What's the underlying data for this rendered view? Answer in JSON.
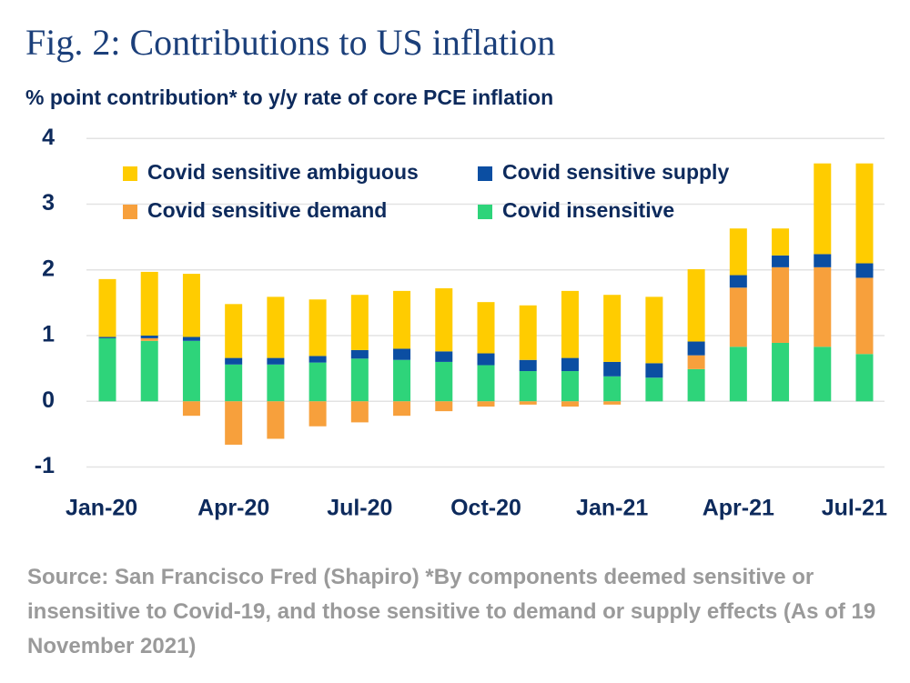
{
  "chart_data": {
    "type": "bar",
    "title": "Fig. 2: Contributions to US inflation",
    "subtitle": "% point contribution* to y/y rate of core PCE inflation",
    "note": "Source: San Francisco Fred (Shapiro) *By components deemed sensitive or insensitive to Covid-19, and those sensitive to demand or supply effects (As of 19 November 2021)",
    "stacked": true,
    "categories": [
      "Jan-20",
      null,
      null,
      "Apr-20",
      null,
      null,
      "Jul-20",
      null,
      null,
      "Oct-20",
      null,
      null,
      "Jan-21",
      null,
      null,
      "Apr-21",
      null,
      null,
      "Jul-21"
    ],
    "series": [
      {
        "name": "Covid sensitive ambiguous",
        "color": "#ffcc00",
        "values": [
          0.88,
          0.97,
          0.96,
          0.82,
          0.93,
          0.86,
          0.84,
          0.88,
          0.96,
          0.78,
          0.83,
          1.02,
          1.02,
          1.01,
          1.1,
          0.71,
          0.41,
          1.38,
          1.52
        ]
      },
      {
        "name": "Covid sensitive supply",
        "color": "#0b4ea2",
        "values": [
          0.02,
          0.04,
          0.06,
          0.1,
          0.1,
          0.1,
          0.13,
          0.17,
          0.16,
          0.18,
          0.17,
          0.2,
          0.22,
          0.22,
          0.21,
          0.19,
          0.18,
          0.2,
          0.22
        ]
      },
      {
        "name": "Covid sensitive demand",
        "color": "#f7a03c",
        "values": [
          0,
          0.04,
          -0.22,
          -0.66,
          -0.57,
          -0.38,
          -0.32,
          -0.22,
          -0.15,
          -0.08,
          -0.05,
          -0.08,
          -0.05,
          0,
          0.21,
          0.9,
          1.15,
          1.21,
          1.16
        ]
      },
      {
        "name": "Covid insensitive",
        "color": "#2ed47a",
        "values": [
          0.96,
          0.92,
          0.92,
          0.56,
          0.56,
          0.59,
          0.65,
          0.63,
          0.6,
          0.55,
          0.46,
          0.46,
          0.38,
          0.36,
          0.49,
          0.83,
          0.89,
          0.83,
          0.72
        ]
      }
    ],
    "ylim": [
      -1.2,
      4.1
    ],
    "yticks": [
      4,
      3,
      2,
      1,
      0,
      -1
    ],
    "grid": true
  }
}
